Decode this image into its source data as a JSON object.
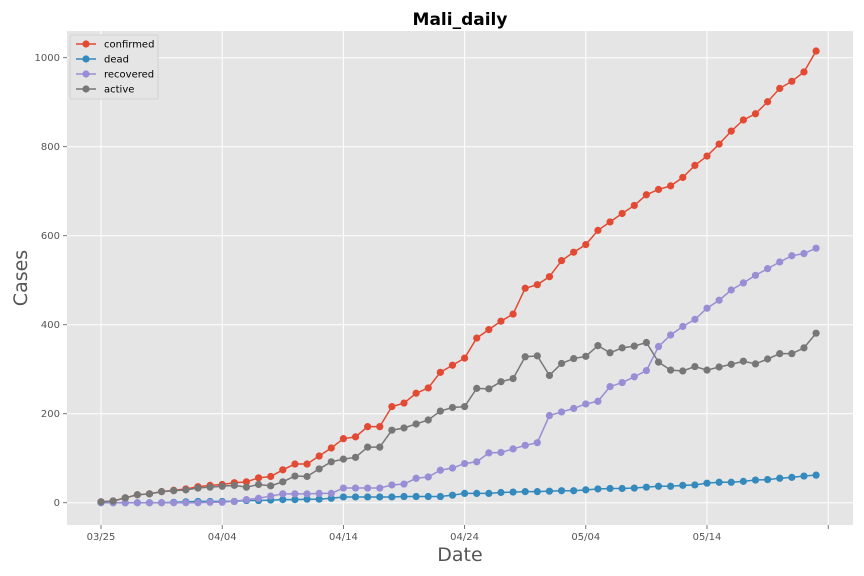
{
  "chart_data": {
    "type": "line",
    "title": "Mali_daily",
    "xlabel": "Date",
    "ylabel": "Cases",
    "x_start": "2020-03-25",
    "x_tick_labels": [
      "03/25",
      "04/04",
      "04/14",
      "04/24",
      "05/04",
      "05/14"
    ],
    "y_tick_labels": [
      "0",
      "200",
      "400",
      "600",
      "800",
      "1000"
    ],
    "ylim": [
      -50,
      1060
    ],
    "grid": true,
    "legend_position": "top-left",
    "series": [
      {
        "name": "confirmed",
        "color": "#E24A33",
        "values": [
          2,
          4,
          11,
          18,
          20,
          25,
          28,
          31,
          36,
          39,
          41,
          45,
          47,
          56,
          59,
          74,
          87,
          87,
          105,
          123,
          144,
          148,
          171,
          171,
          216,
          224,
          246,
          258,
          293,
          309,
          325,
          370,
          389,
          408,
          424,
          482,
          490,
          508,
          544,
          563,
          580,
          612,
          631,
          650,
          668,
          692,
          704,
          712,
          731,
          758,
          779,
          806,
          835,
          860,
          874,
          901,
          931,
          947,
          968,
          1015
        ]
      },
      {
        "name": "dead",
        "color": "#348ABD",
        "values": [
          0,
          0,
          0,
          0,
          0,
          0,
          1,
          2,
          3,
          3,
          3,
          3,
          5,
          5,
          6,
          7,
          7,
          8,
          8,
          10,
          13,
          13,
          13,
          13,
          13,
          14,
          14,
          14,
          14,
          17,
          21,
          21,
          21,
          23,
          24,
          25,
          25,
          26,
          27,
          27,
          29,
          31,
          32,
          32,
          33,
          35,
          37,
          37,
          39,
          40,
          44,
          46,
          46,
          48,
          51,
          52,
          55,
          57,
          60,
          62
        ]
      },
      {
        "name": "recovered",
        "color": "#988ED5",
        "values": [
          0,
          0,
          0,
          0,
          0,
          0,
          0,
          0,
          0,
          1,
          1,
          3,
          7,
          10,
          15,
          20,
          20,
          20,
          21,
          21,
          33,
          33,
          33,
          33,
          40,
          42,
          55,
          58,
          73,
          78,
          88,
          92,
          112,
          113,
          121,
          129,
          135,
          196,
          204,
          212,
          222,
          228,
          261,
          270,
          283,
          297,
          351,
          377,
          396,
          412,
          437,
          455,
          478,
          494,
          511,
          526,
          541,
          555,
          560,
          572
        ]
      },
      {
        "name": "active",
        "color": "#777777",
        "values": [
          2,
          4,
          11,
          18,
          20,
          25,
          27,
          29,
          33,
          35,
          37,
          39,
          35,
          41,
          38,
          47,
          60,
          59,
          76,
          92,
          98,
          102,
          125,
          125,
          163,
          168,
          177,
          186,
          206,
          214,
          216,
          257,
          256,
          272,
          279,
          328,
          330,
          286,
          313,
          324,
          329,
          353,
          337,
          348,
          352,
          360,
          316,
          298,
          296,
          306,
          298,
          305,
          311,
          318,
          312,
          323,
          335,
          335,
          348,
          381
        ]
      }
    ]
  }
}
